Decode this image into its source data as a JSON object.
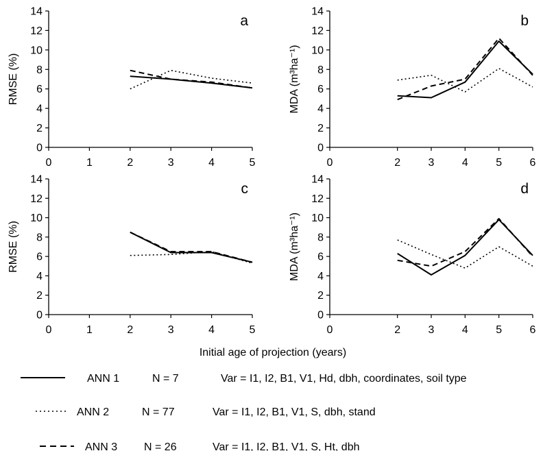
{
  "figure": {
    "xlabel": "Initial age of projection (years)"
  },
  "line_styles": {
    "ANN 1": "solid",
    "ANN 2": "dotted",
    "ANN 3": "dashed"
  },
  "legend": [
    {
      "name": "ANN 1",
      "n": "N = 7",
      "vars": "Var = I1, I2, B1, V1, Hd, dbh, coordinates, soil type",
      "style": "solid"
    },
    {
      "name": "ANN 2",
      "n": "N = 77",
      "vars": "Var = I1, I2, B1, V1, S, dbh, stand",
      "style": "dotted"
    },
    {
      "name": "ANN 3",
      "n": "N = 26",
      "vars": "Var = I1, I2, B1, V1, S, Ht, dbh",
      "style": "dashed"
    }
  ],
  "chart_data": [
    {
      "panel": "a",
      "type": "line",
      "ylabel": "RMSE (%)",
      "xlim": [
        0,
        5
      ],
      "ylim": [
        0,
        14
      ],
      "xticks": [
        0,
        1,
        2,
        3,
        4,
        5
      ],
      "yticks": [
        0,
        2,
        4,
        6,
        8,
        10,
        12,
        14
      ],
      "x": [
        2,
        3,
        4,
        5
      ],
      "series": [
        {
          "name": "ANN 1",
          "values": [
            7.3,
            7.0,
            6.6,
            6.1
          ]
        },
        {
          "name": "ANN 2",
          "values": [
            6.0,
            7.9,
            7.1,
            6.6
          ]
        },
        {
          "name": "ANN 3",
          "values": [
            7.9,
            7.0,
            6.7,
            6.1
          ]
        }
      ]
    },
    {
      "panel": "b",
      "type": "line",
      "ylabel": "MDA (m³ha⁻¹)",
      "xlim": [
        0,
        6
      ],
      "ylim": [
        0,
        14
      ],
      "xticks": [
        0,
        2,
        3,
        4,
        5,
        6
      ],
      "yticks": [
        0,
        2,
        4,
        6,
        8,
        10,
        12,
        14
      ],
      "x": [
        2,
        3,
        4,
        5,
        6
      ],
      "series": [
        {
          "name": "ANN 1",
          "values": [
            5.3,
            5.1,
            6.7,
            10.9,
            7.5
          ]
        },
        {
          "name": "ANN 2",
          "values": [
            6.9,
            7.4,
            5.7,
            8.1,
            6.2
          ]
        },
        {
          "name": "ANN 3",
          "values": [
            4.9,
            6.3,
            7.0,
            11.2,
            7.4
          ]
        }
      ]
    },
    {
      "panel": "c",
      "type": "line",
      "ylabel": "RMSE (%)",
      "xlim": [
        0,
        5
      ],
      "ylim": [
        0,
        14
      ],
      "xticks": [
        0,
        1,
        2,
        3,
        4,
        5
      ],
      "yticks": [
        0,
        2,
        4,
        6,
        8,
        10,
        12,
        14
      ],
      "x": [
        2,
        3,
        4,
        5
      ],
      "series": [
        {
          "name": "ANN 1",
          "values": [
            8.5,
            6.4,
            6.4,
            5.4
          ]
        },
        {
          "name": "ANN 2",
          "values": [
            6.1,
            6.2,
            6.5,
            5.3
          ]
        },
        {
          "name": "ANN 3",
          "values": [
            8.5,
            6.5,
            6.5,
            5.4
          ]
        }
      ]
    },
    {
      "panel": "d",
      "type": "line",
      "ylabel": "MDA (m³ha⁻¹)",
      "xlim": [
        0,
        6
      ],
      "ylim": [
        0,
        14
      ],
      "xticks": [
        0,
        2,
        3,
        4,
        5,
        6
      ],
      "yticks": [
        0,
        2,
        4,
        6,
        8,
        10,
        12,
        14
      ],
      "x": [
        2,
        3,
        4,
        5,
        6
      ],
      "series": [
        {
          "name": "ANN 1",
          "values": [
            6.3,
            4.1,
            6.1,
            9.8,
            6.1
          ]
        },
        {
          "name": "ANN 2",
          "values": [
            7.7,
            6.2,
            4.8,
            7.0,
            5.0
          ]
        },
        {
          "name": "ANN 3",
          "values": [
            5.6,
            5.0,
            6.5,
            9.9,
            6.0
          ]
        }
      ]
    }
  ]
}
